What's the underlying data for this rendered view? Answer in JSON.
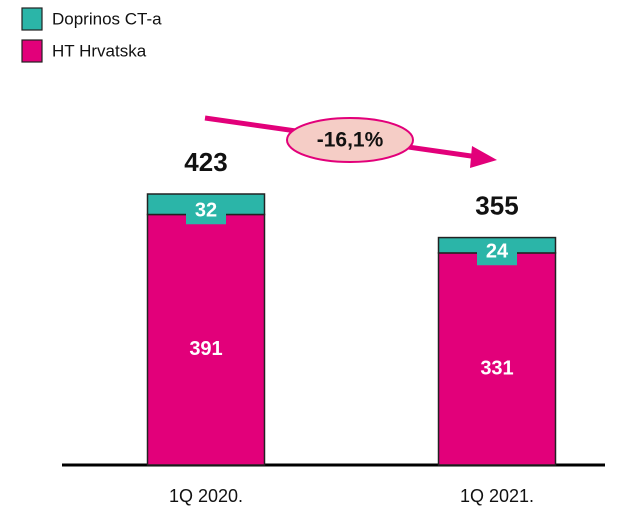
{
  "chart_data": {
    "type": "stacked_bar",
    "categories": [
      "1Q 2020.",
      "1Q 2021."
    ],
    "series": [
      {
        "name": "HT Hrvatska",
        "color": "#e2007a",
        "values": [
          391,
          331
        ]
      },
      {
        "name": "Doprinos CT-a",
        "color": "#2bb5a8",
        "values": [
          32,
          24
        ]
      }
    ],
    "totals": [
      423,
      355
    ],
    "annotation": "-16,1%"
  }
}
